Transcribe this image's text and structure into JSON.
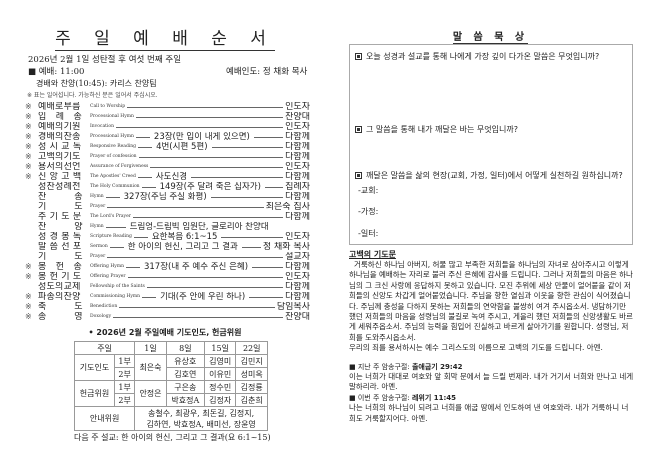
{
  "left": {
    "title": "주 일 예 배 순 서",
    "date_line": "2026년  2월 1일 성탄절 후 여섯 번째 주일",
    "worship_time": "■ 예배: 11:00",
    "worship_leader": "예배인도: 정 채화 목사",
    "praise": "경배와 찬양(10:45): 카리스 찬양팀",
    "note": "※ 표는 일어섭니다. 가능하신 분은 일어서 주십시오.",
    "order": [
      {
        "star": "※",
        "label": "예배로부름",
        "en": "Call to Worship",
        "mid": "",
        "leader": "인도자"
      },
      {
        "star": "※",
        "label": "입례송",
        "en": "Processional Hymn",
        "mid": "",
        "leader": "찬양대"
      },
      {
        "star": "※",
        "label": "예배의기원",
        "en": "Invocation",
        "mid": "",
        "leader": "인도자"
      },
      {
        "star": "※",
        "label": "경배의찬송",
        "en": "Processional Hymn",
        "mid": "23장(만 입이 내게 있으면)",
        "leader": "다함께"
      },
      {
        "star": "※",
        "label": "성시교독",
        "en": "Responsive Reading",
        "mid": "4번(시편 5편)",
        "leader": "다함께"
      },
      {
        "star": "※",
        "label": "고백의기도",
        "en": "Prayer of confession",
        "mid": "",
        "leader": "다함께"
      },
      {
        "star": "※",
        "label": "용서의선언",
        "en": "Assurance of Forgiveness",
        "mid": "",
        "leader": "인도자"
      },
      {
        "star": "※",
        "label": "신앙고백",
        "en": "The Apostles' Creed",
        "mid": "사도신경",
        "leader": "다함께"
      },
      {
        "star": "",
        "label": "성찬성례전",
        "en": "The Holy Communion",
        "mid": "149장(주 달려 죽은 십자가)",
        "leader": "집례자"
      },
      {
        "star": "",
        "label": "찬송",
        "en": "Hymn",
        "mid": "327장(주님 주실 화평)",
        "leader": "다함께"
      },
      {
        "star": "",
        "label": "기도",
        "en": "Prayer",
        "mid": "",
        "leader": "최은숙 집사"
      },
      {
        "star": "",
        "label": "주기도문",
        "en": "The Lord's Prayer",
        "mid": "",
        "leader": "다함께"
      },
      {
        "star": "",
        "label": "찬양",
        "en": "Hymn",
        "mid": "드림엉-드림빅 임원단, 글로리아 찬양대",
        "leader": ""
      },
      {
        "star": "",
        "label": "성경봉독",
        "en": "Scripture Reading",
        "mid": "요한복음 6:1~15",
        "leader": "인도자"
      },
      {
        "star": "",
        "label": "말씀선포",
        "en": "Sermon",
        "mid": "한 아이의 헌신, 그리고 그 결과",
        "leader": "정 채화 목사"
      },
      {
        "star": "",
        "label": "기도",
        "en": "Prayer",
        "mid": "",
        "leader": "설교자"
      },
      {
        "star": "※",
        "label": "봉헌송",
        "en": "Offering Hymn",
        "mid": "317장(내 주 예수 주신 은혜)",
        "leader": "다함께"
      },
      {
        "star": "※",
        "label": "봉헌기도",
        "en": "Offering Prayer",
        "mid": "",
        "leader": "인도자"
      },
      {
        "star": "",
        "label": "성도의교제",
        "en": "Fellowship of the Saints",
        "mid": "",
        "leader": "다함께"
      },
      {
        "star": "※",
        "label": "파송의찬양",
        "en": "Commissioning Hymn",
        "mid": "기대(주 안에 우린 하나)",
        "leader": "다함께"
      },
      {
        "star": "※",
        "label": "축도",
        "en": "Benediction",
        "mid": "",
        "leader": "담임목사"
      },
      {
        "star": "※",
        "label": "송영",
        "en": "Doxology",
        "mid": "",
        "leader": "찬양대"
      }
    ],
    "table_title": "• 2026년 2월 주일예배 기도인도, 헌금위원",
    "table": {
      "header": [
        "주일",
        "1일",
        "8일",
        "15일",
        "22일"
      ],
      "prayer_label": "기도인도",
      "offering_label": "헌금위원",
      "usher_label": "안내위원",
      "part1": "1부",
      "part2": "2부",
      "prayer_first": "최은숙",
      "prayer_1": [
        "유상호",
        "김영미",
        "김민지"
      ],
      "prayer_2": [
        "김호연",
        "이유민",
        "성미옥"
      ],
      "offering_first": "안정은",
      "offering_1": [
        "구은송",
        "정수민",
        "김정룡"
      ],
      "offering_2": [
        "박효정A",
        "김정자",
        "김춘희"
      ],
      "ushers_1": "송철수, 최광우, 최돈길, 김정지,",
      "ushers_2": "김하연, 박효정A, 배미선, 장윤영"
    },
    "next_sermon": "다음 주 설교: 한 아이의 헌신, 그리고 그 결과(요 6:1~15)"
  },
  "right": {
    "title": "말 씀 묵 상",
    "q1": "오늘 성경과 설교를 통해 나에게 가장 깊이 다가온 말씀은 무엇입니까?",
    "q2": "그 말씀을 통해 내가 깨달은 바는 무엇입니까?",
    "q3": "깨달은 말씀을 삶의 현장(교회, 가정, 일터)에서 어떻게 실천하길 원하십니까?",
    "church": "-교회:",
    "home": "-가정:",
    "work": "-일터:",
    "confession_title": "고백의 기도문",
    "confession": "거룩하신 하나님 아버지, 허물 많고 부족한 저희들을 하나님의 자녀로 삼아주시고 이렇게 하나님을 예배하는 자리로 불러 주신 은혜에 감사를 드립니다. 그러나 저희들의 마음은 하나님의 그 크신 사랑에 응답하지 못하고 있습니다. 모진 추위에 세상 만물이 얼어붙을 같이 저희들의 신앙도 차갑게 얼어붙었습니다. 주님을 향한 열심과 이웃을 향한 관심이 식어졌습니다. 주님께 충성을 다하지 못하는 저희들의 연약함을 불쌍히 여겨 주시옵소서. 냉담하기만 했던 저희들의 마음을 성령님의 불길로 녹여 주시고, 게을리 했던 저희들의 신앙생활도 바르게 세워주옵소서. 주님의 능력을 힘입어 진실하고 바르게 살아가기를 원합니다. 성령님, 저희를 도와주시옵소서.",
    "confession_end": "우리의 죄를 용서하시는 예수 그리스도의 이름으로 고백의 기도를 드립니다. 아멘.",
    "last_week_label": "■ 지난 주 암송구절:",
    "last_week_ref": "출애굽기 29:42",
    "last_week_text": "이는 너희가 대대로 여호와 앞 회막 문에서 늘 드릴 번제라. 내가 거기서 너희와 만나고 네게 말하리라. 아멘.",
    "this_week_label": "■ 이번 주 암송구절:",
    "this_week_ref": "레위기 11:45",
    "this_week_text": "나는 너희의 하나님이 되려고 너희를 애굽 땅에서 인도하여 낸 여호와라. 내가 거룩하니 너희도 거룩할지어다. 아멘."
  }
}
